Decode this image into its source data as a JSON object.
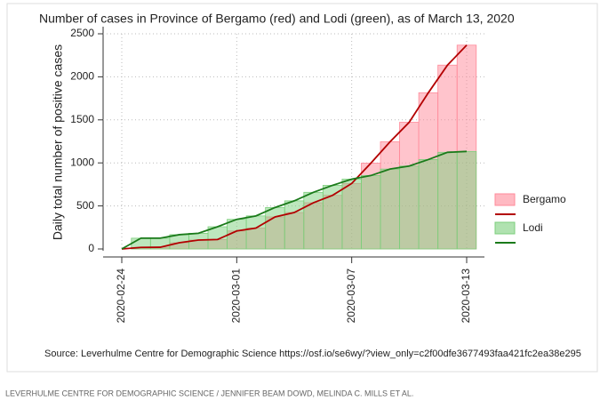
{
  "chart_data": {
    "type": "bar",
    "title": "Number of cases in Province of Bergamo (red) and Lodi (green), as of March 13, 2020",
    "y_label": "Daily total number of positive cases",
    "categories": [
      "2020-02-24",
      null,
      null,
      null,
      null,
      null,
      "2020-03-01",
      null,
      null,
      null,
      null,
      null,
      "2020-03-07",
      null,
      null,
      null,
      null,
      null,
      "2020-03-13"
    ],
    "series": [
      {
        "name": "Bergamo",
        "color": "#ff8a99",
        "line_color": "#b30000",
        "values": [
          0,
          18,
          20,
          72,
          103,
          110,
          209,
          243,
          372,
          423,
          537,
          623,
          761,
          997,
          1245,
          1472,
          1815,
          2136,
          2368
        ]
      },
      {
        "name": "Lodi",
        "color": "#7ccf7c",
        "line_color": "#1a7a1a",
        "values": [
          0,
          125,
          125,
          166,
          182,
          258,
          344,
          384,
          482,
          559,
          658,
          739,
          811,
          853,
          928,
          963,
          1039,
          1123,
          1133
        ]
      }
    ],
    "ylim": [
      0,
      2500
    ],
    "yticks": [
      0,
      500,
      1000,
      1500,
      2000,
      2500
    ],
    "grid": true,
    "legend": "right",
    "source": "Source: Leverhulme Centre for Demographic Science https://osf.io/se6wy/?view_only=c2f00dfe3677493faa421fc2ea38e295",
    "caption": "LEVERHULME CENTRE FOR DEMOGRAPHIC SCIENCE / JENNIFER BEAM DOWD, MELINDA C. MILLS ET AL."
  }
}
